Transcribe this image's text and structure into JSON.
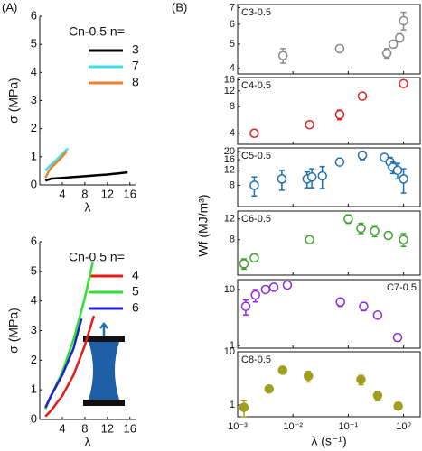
{
  "panel_labels": [
    "(A)",
    "(B)"
  ],
  "panel_b": {
    "x_label": "λ̇ (s⁻¹)",
    "y_label": "Wf (MJ/m³)"
  },
  "chart_data": [
    {
      "type": "line",
      "x_label": "λ",
      "y_label": "σ (MPa)",
      "legend_title": "Cn-0.5  n=",
      "xlim": [
        0,
        17
      ],
      "xticks": [
        4,
        8,
        12,
        16
      ],
      "ylim": [
        0,
        6
      ],
      "yticks": [
        0,
        1,
        2,
        3,
        4,
        5,
        6
      ],
      "series": [
        {
          "name": "3",
          "color": "#000000",
          "x": [
            1,
            2,
            4,
            6,
            8,
            10,
            12,
            14,
            15.6
          ],
          "values": [
            0.15,
            0.22,
            0.25,
            0.28,
            0.31,
            0.34,
            0.37,
            0.41,
            0.45
          ]
        },
        {
          "name": "7",
          "color": "#40e0e8",
          "x": [
            1,
            1.5,
            2,
            3,
            4,
            5
          ],
          "values": [
            0.5,
            0.62,
            0.72,
            0.9,
            1.1,
            1.3
          ]
        },
        {
          "name": "8",
          "color": "#f08030",
          "x": [
            1,
            1.5,
            2,
            3,
            4,
            4.8
          ],
          "values": [
            0.25,
            0.45,
            0.6,
            0.8,
            1.0,
            1.2
          ]
        }
      ]
    },
    {
      "type": "line",
      "x_label": "λ",
      "y_label": "σ (MPa)",
      "legend_title": "Cn-0.5  n=",
      "xlim": [
        0,
        17
      ],
      "xticks": [
        4,
        8,
        12,
        16
      ],
      "ylim": [
        0,
        6
      ],
      "yticks": [
        0,
        1,
        2,
        3,
        4,
        5,
        6
      ],
      "series": [
        {
          "name": "4",
          "color": "#e81818",
          "x": [
            1,
            2,
            4,
            6,
            8,
            9.6
          ],
          "values": [
            0.1,
            0.3,
            0.8,
            1.5,
            2.5,
            3.5
          ]
        },
        {
          "name": "5",
          "color": "#30e030",
          "x": [
            1,
            2,
            4,
            6,
            8,
            9.4
          ],
          "values": [
            0.35,
            0.8,
            1.6,
            2.7,
            4.1,
            5.3
          ]
        },
        {
          "name": "6",
          "color": "#2020d0",
          "x": [
            1,
            2,
            4,
            6,
            7.4
          ],
          "values": [
            0.4,
            0.8,
            1.5,
            2.4,
            3.4
          ]
        }
      ]
    },
    {
      "type": "scatter",
      "label": "C3-0.5",
      "label_corner": "top-left",
      "color": "#888888",
      "marker": "open",
      "xscale": "log",
      "yscale": "log",
      "xlim": [
        0.001,
        2
      ],
      "ylim": [
        3.8,
        7.2
      ],
      "yticks": [
        4,
        5,
        6,
        7
      ],
      "x": [
        0.0066,
        0.07,
        0.5,
        0.65,
        0.85,
        1.0
      ],
      "values": [
        4.5,
        4.8,
        4.6,
        5.0,
        5.3,
        6.2
      ],
      "errors": [
        0.3,
        0.1,
        0.2,
        0.15,
        0.2,
        0.5
      ]
    },
    {
      "type": "scatter",
      "label": "C4-0.5",
      "label_corner": "top-left",
      "color": "#e02020",
      "marker": "open",
      "xscale": "log",
      "yscale": "log",
      "xlim": [
        0.001,
        2
      ],
      "ylim": [
        3,
        17
      ],
      "yticks": [
        4,
        8,
        12,
        16
      ],
      "x": [
        0.002,
        0.02,
        0.07,
        0.18,
        1.0
      ],
      "values": [
        4,
        5,
        6.5,
        10.5,
        14.5
      ],
      "errors": [
        0.2,
        0.3,
        0.8,
        0.8,
        1
      ]
    },
    {
      "type": "scatter",
      "label": "C5-0.5",
      "label_corner": "top-left",
      "color": "#1f6fb0",
      "marker": "open",
      "xscale": "log",
      "yscale": "log",
      "xlim": [
        0.001,
        2
      ],
      "ylim": [
        4.5,
        22
      ],
      "yticks": [
        8,
        12,
        16,
        20
      ],
      "x": [
        0.002,
        0.0063,
        0.018,
        0.022,
        0.034,
        0.07,
        0.18,
        0.45,
        0.57,
        0.64,
        0.78,
        1.0
      ],
      "values": [
        8,
        9.5,
        9.5,
        10,
        10.3,
        15,
        18,
        17,
        15,
        13,
        12,
        9.5
      ],
      "errors": [
        2,
        2.5,
        2,
        2.5,
        3,
        1,
        2,
        1.5,
        2,
        2,
        2.5,
        3
      ]
    },
    {
      "type": "scatter",
      "label": "C6-0.5",
      "label_corner": "top-left",
      "color": "#3aa02a",
      "marker": "open",
      "xscale": "log",
      "yscale": "log",
      "xlim": [
        0.001,
        2
      ],
      "ylim": [
        4,
        14
      ],
      "yticks": [
        8,
        12
      ],
      "x": [
        0.0013,
        0.002,
        0.02,
        0.1,
        0.17,
        0.3,
        0.53,
        1.0
      ],
      "values": [
        5,
        5.6,
        8,
        12,
        10,
        9.5,
        8.7,
        8
      ],
      "errors": [
        0.5,
        0.4,
        0.3,
        1,
        1,
        1,
        0.5,
        1
      ]
    },
    {
      "type": "scatter",
      "label": "C7-0.5",
      "label_corner": "top-right",
      "color": "#8a2be2",
      "marker": "open",
      "xscale": "log",
      "yscale": "log",
      "xlim": [
        0.001,
        2
      ],
      "ylim": [
        0.9,
        15
      ],
      "yticks": [
        1,
        10
      ],
      "x": [
        0.0014,
        0.0021,
        0.0032,
        0.0045,
        0.0079,
        0.072,
        0.19,
        0.34,
        0.78
      ],
      "values": [
        5,
        8,
        10,
        11,
        12,
        6,
        5,
        3.5,
        1.4
      ],
      "errors": [
        1.5,
        2,
        1,
        1,
        1.5,
        1,
        0.8,
        0.5,
        0.2
      ]
    },
    {
      "type": "scatter",
      "label": "C8-0.5",
      "label_corner": "top-left",
      "color": "#a0a020",
      "marker": "filled",
      "xscale": "log",
      "yscale": "log",
      "xlim": [
        0.001,
        2
      ],
      "ylim": [
        0.6,
        10
      ],
      "xticks": [
        {
          "value": 0.001,
          "label": "10⁻³"
        },
        {
          "value": 0.01,
          "label": "10⁻²"
        },
        {
          "value": 0.1,
          "label": "10⁻¹"
        },
        {
          "value": 1,
          "label": "10⁰"
        }
      ],
      "yticks": [
        1,
        10
      ],
      "x": [
        0.0013,
        0.0037,
        0.0065,
        0.019,
        0.17,
        0.34,
        0.8
      ],
      "values": [
        0.9,
        2,
        4.5,
        3.5,
        3,
        1.5,
        0.95
      ],
      "errors": [
        0.3,
        0.2,
        0.5,
        0.8,
        0.6,
        0.3,
        0.1
      ]
    }
  ]
}
